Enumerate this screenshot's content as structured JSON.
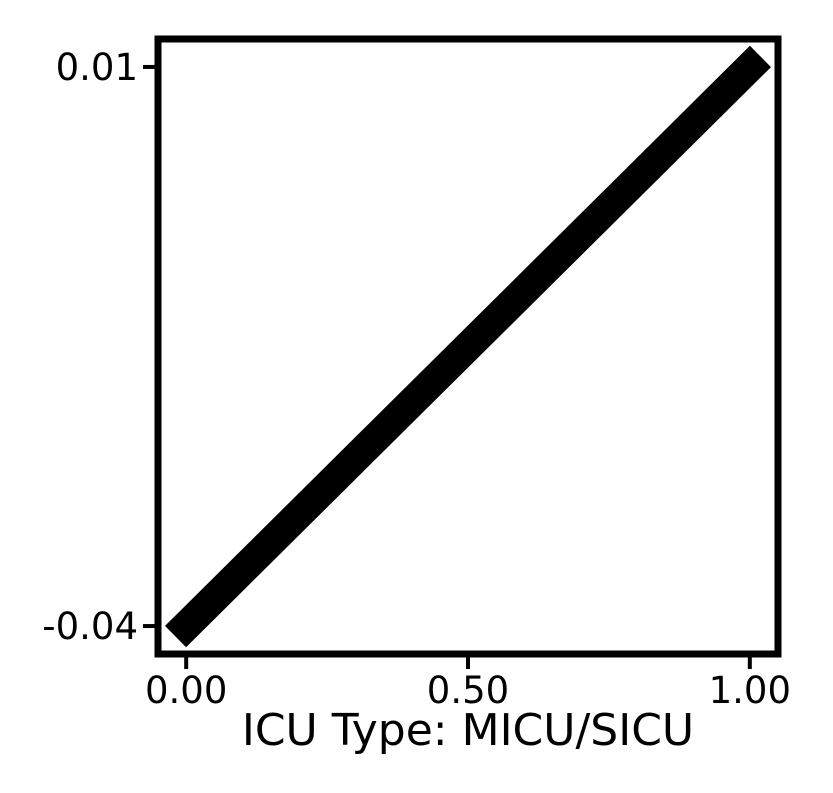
{
  "chart_data": {
    "type": "line",
    "title": "",
    "xlabel": "ICU Type: MICU/SICU",
    "ylabel": "",
    "x": [
      0.0,
      1.0
    ],
    "series": [
      {
        "values": [
          -0.04,
          0.01
        ],
        "color": "#000000"
      }
    ],
    "xlim": [
      -0.05,
      1.05
    ],
    "ylim": [
      -0.0425,
      0.0125
    ],
    "xticks": [
      0.0,
      0.5,
      1.0
    ],
    "xtick_labels": [
      "0.00",
      "0.50",
      "1.00"
    ],
    "yticks": [
      -0.04,
      0.01
    ],
    "ytick_labels": [
      "-0.04",
      "0.01"
    ],
    "grid": false,
    "legend": "none"
  }
}
